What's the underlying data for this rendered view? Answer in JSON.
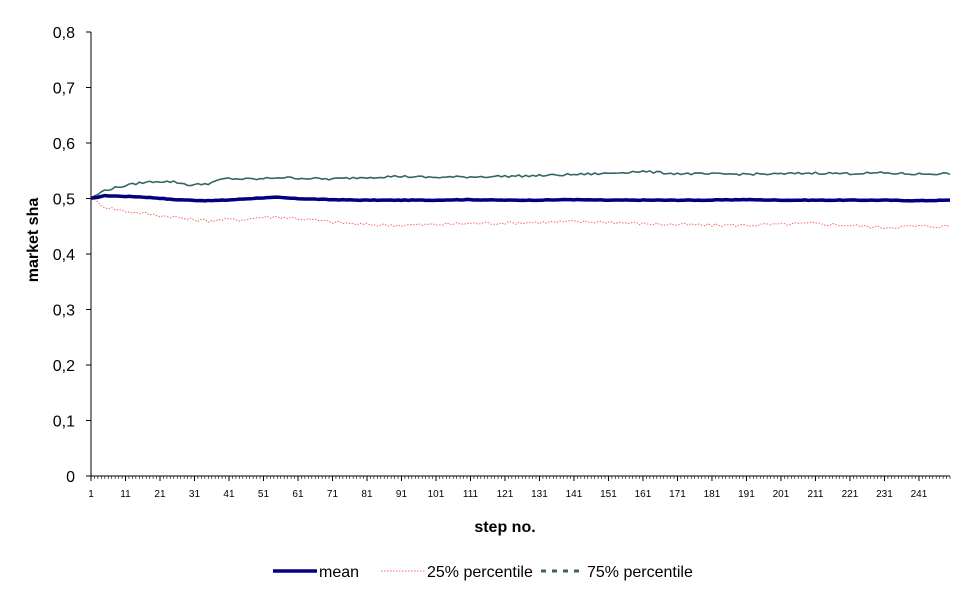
{
  "chart_data": {
    "type": "line",
    "title": "",
    "xlabel": "step no.",
    "ylabel": "market sha",
    "xlim": [
      1,
      250
    ],
    "ylim": [
      0,
      0.8
    ],
    "x_ticks": [
      "1",
      "11",
      "21",
      "31",
      "41",
      "51",
      "61",
      "71",
      "81",
      "91",
      "101",
      "111",
      "121",
      "131",
      "141",
      "151",
      "161",
      "171",
      "181",
      "191",
      "201",
      "211",
      "221",
      "231",
      "241"
    ],
    "y_ticks": [
      "0",
      "0,1",
      "0,2",
      "0,3",
      "0,4",
      "0,5",
      "0,6",
      "0,7",
      "0,8"
    ],
    "grid": false,
    "legend_position": "bottom",
    "series": [
      {
        "name": "mean",
        "color": "#000080",
        "style": "solid-thick",
        "x": [
          1,
          5,
          10,
          15,
          20,
          25,
          30,
          35,
          40,
          45,
          50,
          55,
          60,
          70,
          80,
          90,
          100,
          110,
          120,
          130,
          140,
          150,
          160,
          170,
          180,
          190,
          200,
          210,
          220,
          230,
          240,
          250
        ],
        "values": [
          0.5,
          0.505,
          0.504,
          0.503,
          0.501,
          0.498,
          0.497,
          0.496,
          0.497,
          0.499,
          0.501,
          0.502,
          0.5,
          0.498,
          0.497,
          0.497,
          0.497,
          0.498,
          0.497,
          0.497,
          0.498,
          0.497,
          0.497,
          0.497,
          0.497,
          0.498,
          0.497,
          0.497,
          0.497,
          0.497,
          0.496,
          0.497
        ]
      },
      {
        "name": "25% percentile",
        "color": "#ff6666",
        "style": "dotted",
        "x": [
          1,
          5,
          10,
          15,
          20,
          25,
          30,
          35,
          40,
          45,
          50,
          55,
          60,
          70,
          80,
          90,
          100,
          110,
          120,
          130,
          140,
          150,
          160,
          170,
          180,
          190,
          200,
          210,
          220,
          230,
          240,
          250
        ],
        "values": [
          0.5,
          0.485,
          0.478,
          0.474,
          0.47,
          0.467,
          0.462,
          0.46,
          0.462,
          0.462,
          0.466,
          0.467,
          0.465,
          0.458,
          0.453,
          0.452,
          0.453,
          0.455,
          0.456,
          0.457,
          0.458,
          0.458,
          0.455,
          0.453,
          0.452,
          0.452,
          0.453,
          0.455,
          0.452,
          0.448,
          0.45,
          0.45
        ]
      },
      {
        "name": "75% percentile",
        "color": "#336666",
        "style": "solid",
        "x": [
          1,
          5,
          10,
          15,
          20,
          25,
          30,
          35,
          40,
          45,
          50,
          55,
          60,
          70,
          80,
          90,
          100,
          110,
          120,
          130,
          140,
          150,
          160,
          170,
          180,
          190,
          200,
          210,
          220,
          230,
          240,
          250
        ],
        "values": [
          0.5,
          0.515,
          0.522,
          0.528,
          0.531,
          0.53,
          0.524,
          0.527,
          0.536,
          0.535,
          0.535,
          0.538,
          0.537,
          0.535,
          0.538,
          0.54,
          0.538,
          0.539,
          0.54,
          0.541,
          0.543,
          0.545,
          0.549,
          0.545,
          0.544,
          0.544,
          0.544,
          0.546,
          0.545,
          0.546,
          0.544,
          0.545
        ]
      }
    ]
  }
}
